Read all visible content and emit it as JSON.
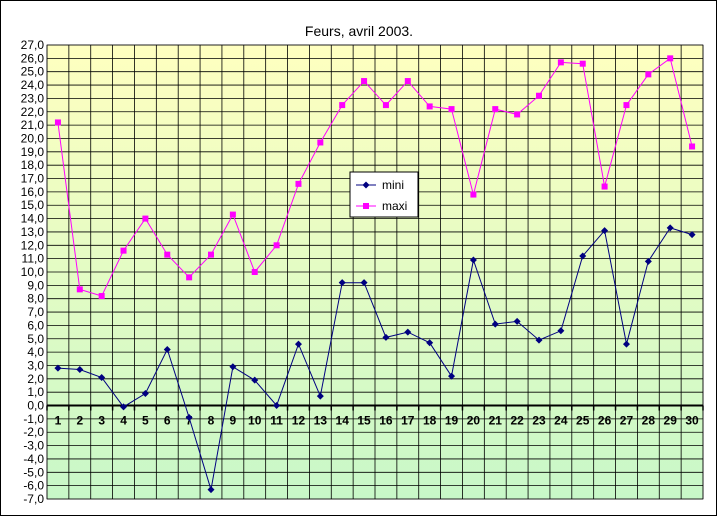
{
  "chart_data": {
    "type": "line",
    "title": "Feurs, avril 2003.",
    "xlabel": "",
    "ylabel": "",
    "x": [
      1,
      2,
      3,
      4,
      5,
      6,
      7,
      8,
      9,
      10,
      11,
      12,
      13,
      14,
      15,
      16,
      17,
      18,
      19,
      20,
      21,
      22,
      23,
      24,
      25,
      26,
      27,
      28,
      29,
      30
    ],
    "ylim": [
      -7,
      27
    ],
    "ytick_step": 1,
    "ytick_labels": [
      "27,0",
      "26,0",
      "25,0",
      "24,0",
      "23,0",
      "22,0",
      "21,0",
      "20,0",
      "19,0",
      "18,0",
      "17,0",
      "16,0",
      "15,0",
      "14,0",
      "13,0",
      "12,0",
      "11,0",
      "10,0",
      "9,0",
      "8,0",
      "7,0",
      "6,0",
      "5,0",
      "4,0",
      "3,0",
      "2,0",
      "1,0",
      "0,0",
      "-1,0",
      "-2,0",
      "-3,0",
      "-4,0",
      "-5,0",
      "-6,0",
      "-7,0"
    ],
    "grid": true,
    "legend_position": "center",
    "background_gradient": {
      "top": "#ffffc0",
      "bottom": "#c8f8c8"
    },
    "series": [
      {
        "name": "mini",
        "color": "#000080",
        "marker": "diamond",
        "values": [
          2.8,
          2.7,
          2.1,
          -0.1,
          0.9,
          4.2,
          -0.9,
          -6.3,
          2.9,
          1.9,
          0.0,
          4.6,
          0.7,
          9.2,
          9.2,
          5.1,
          5.5,
          4.7,
          2.2,
          10.9,
          6.1,
          6.3,
          4.9,
          5.6,
          11.2,
          13.1,
          4.6,
          10.8,
          13.3,
          12.8
        ]
      },
      {
        "name": "maxi",
        "color": "#ff00ff",
        "marker": "square",
        "values": [
          21.2,
          8.7,
          8.2,
          11.6,
          14.0,
          11.3,
          9.6,
          11.3,
          14.3,
          10.0,
          12.0,
          16.6,
          19.7,
          22.5,
          24.3,
          22.5,
          24.3,
          22.4,
          22.2,
          15.8,
          22.2,
          21.8,
          23.2,
          25.7,
          25.6,
          16.4,
          22.5,
          24.8,
          26.0,
          19.4
        ]
      }
    ]
  }
}
